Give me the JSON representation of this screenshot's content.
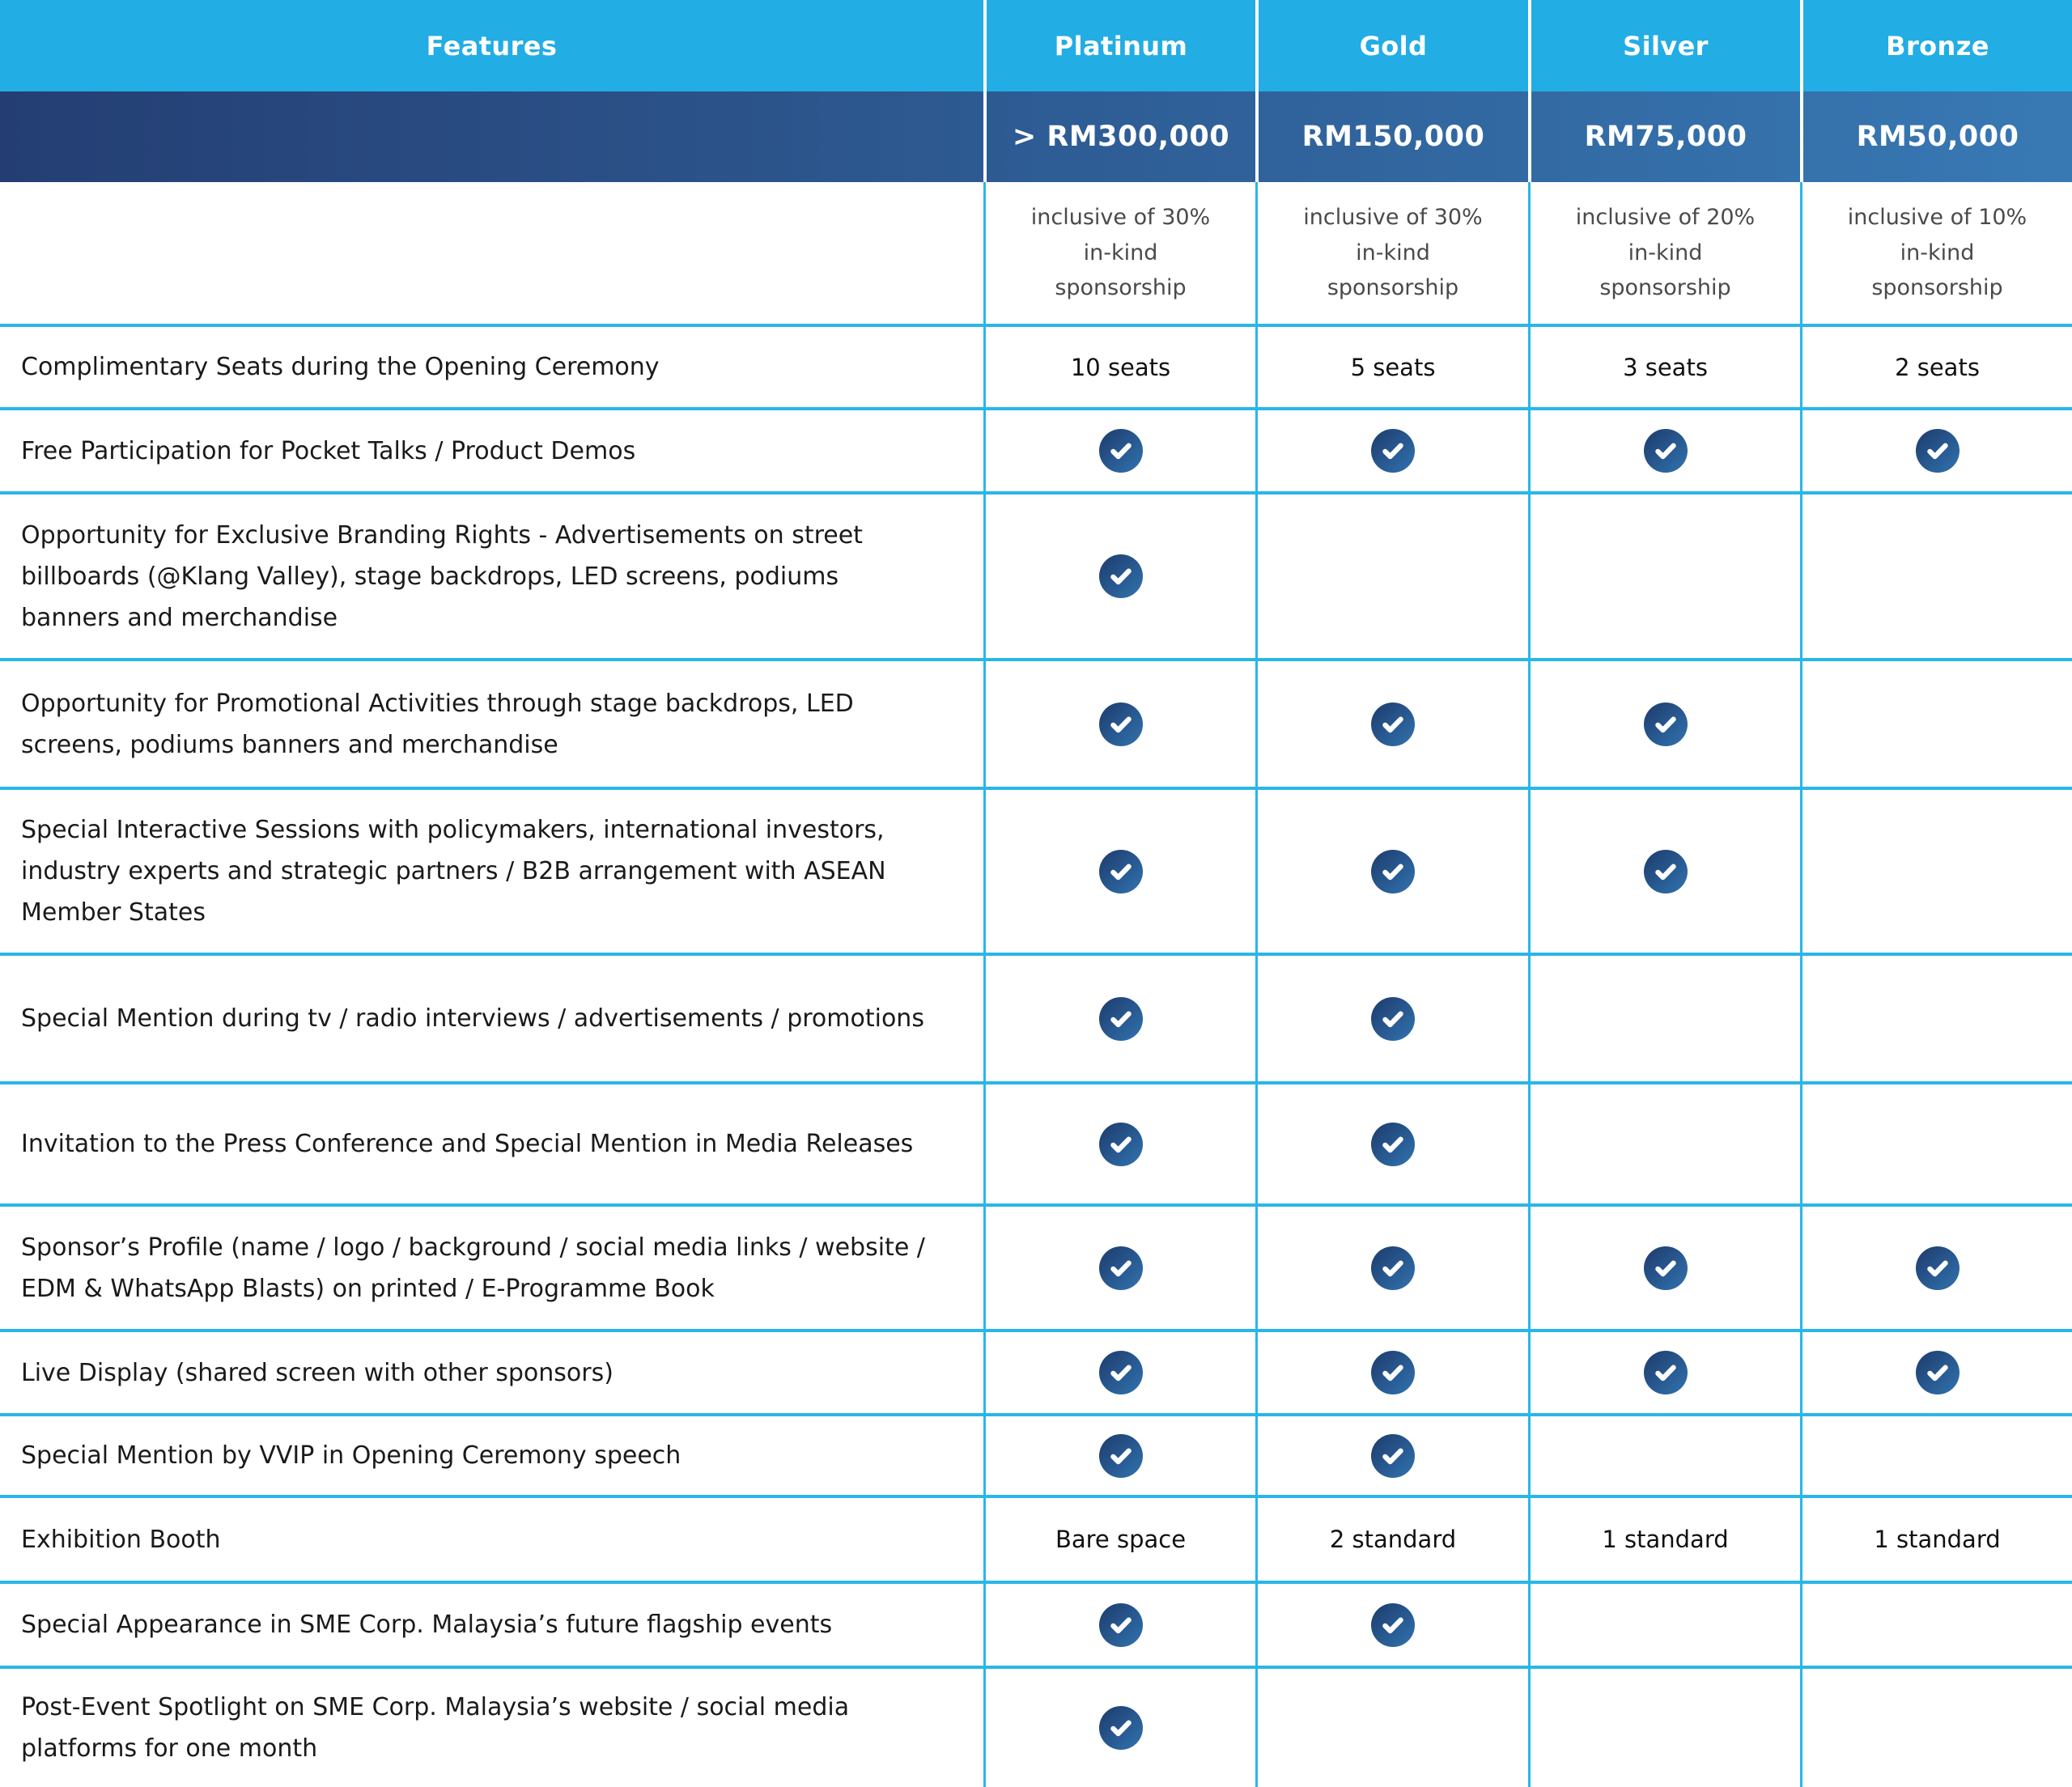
{
  "meta": {
    "title": "Sponsorship packages feature comparison table"
  },
  "colors": {
    "header_bg": "#22ADE4",
    "grid_line": "#29B6E9",
    "band_left": "#243E73",
    "band_right": "#3879B4",
    "check_dark": "#1D3B6C",
    "check_light": "#3173AF",
    "text_dark": "#1A1A1A",
    "text_gray": "#4A4A4A"
  },
  "table": {
    "feature_header": "Features",
    "check_marker": "check",
    "tiers": [
      {
        "id": "platinum",
        "name": "Platinum",
        "price": "> RM300,000",
        "inclusive": "inclusive of 30% in-kind sponsorship"
      },
      {
        "id": "gold",
        "name": "Gold",
        "price": "RM150,000",
        "inclusive": "inclusive of 30% in-kind sponsorship"
      },
      {
        "id": "silver",
        "name": "Silver",
        "price": "RM75,000",
        "inclusive": "inclusive of 20% in-kind sponsorship"
      },
      {
        "id": "bronze",
        "name": "Bronze",
        "price": "RM50,000",
        "inclusive": "inclusive of 10% in-kind sponsorship"
      }
    ],
    "rows": [
      {
        "feature": "Complimentary Seats during the Opening Ceremony",
        "values": [
          "10 seats",
          "5 seats",
          "3 seats",
          "2 seats"
        ]
      },
      {
        "feature": "Free Participation for Pocket Talks / Product Demos",
        "values": [
          "check",
          "check",
          "check",
          "check"
        ]
      },
      {
        "feature": "Opportunity for Exclusive Branding Rights - Advertisements on street billboards (@Klang Valley), stage backdrops, LED screens, podiums banners and merchandise",
        "values": [
          "check",
          "",
          "",
          ""
        ]
      },
      {
        "feature": "Opportunity for Promotional Activities through stage backdrops, LED screens, podiums banners and merchandise",
        "values": [
          "check",
          "check",
          "check",
          ""
        ]
      },
      {
        "feature": "Special Interactive Sessions with policymakers, international investors, industry experts and strategic partners / B2B arrangement with ASEAN Member States",
        "values": [
          "check",
          "check",
          "check",
          ""
        ]
      },
      {
        "feature": "Special Mention during tv / radio interviews / advertisements / promotions",
        "values": [
          "check",
          "check",
          "",
          ""
        ]
      },
      {
        "feature": "Invitation to the Press Conference and Special Mention in Media Releases",
        "values": [
          "check",
          "check",
          "",
          ""
        ]
      },
      {
        "feature": "Sponsor’s Profile (name / logo / background / social media links / website / EDM & WhatsApp Blasts) on printed / E-Programme Book",
        "values": [
          "check",
          "check",
          "check",
          "check"
        ]
      },
      {
        "feature": "Live Display (shared screen with other sponsors)",
        "values": [
          "check",
          "check",
          "check",
          "check"
        ]
      },
      {
        "feature": "Special Mention by VVIP in Opening Ceremony speech",
        "values": [
          "check",
          "check",
          "",
          ""
        ]
      },
      {
        "feature": "Exhibition Booth",
        "values": [
          "Bare space",
          "2 standard",
          "1 standard",
          "1 standard"
        ]
      },
      {
        "feature": "Special Appearance in SME Corp. Malaysia’s future flagship events",
        "values": [
          "check",
          "check",
          "",
          ""
        ]
      },
      {
        "feature": "Post-Event Spotlight on SME Corp. Malaysia’s website / social media platforms for one month",
        "values": [
          "check",
          "",
          "",
          ""
        ]
      }
    ]
  }
}
